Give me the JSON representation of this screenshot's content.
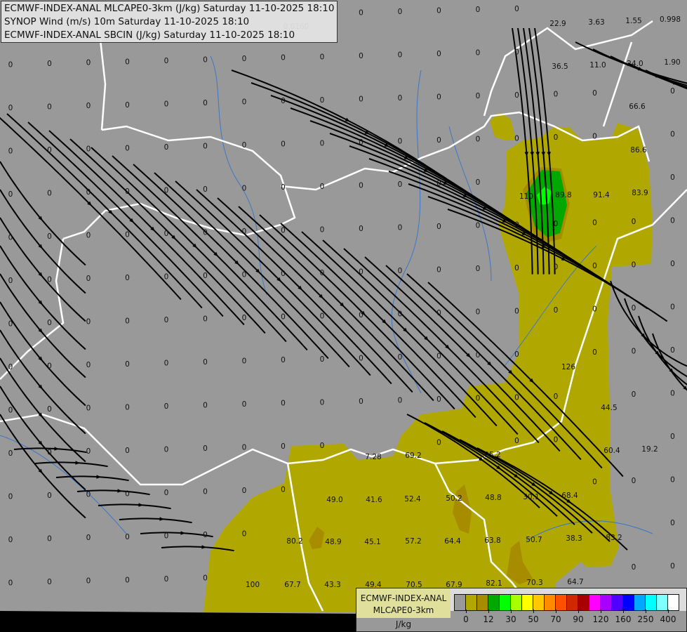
{
  "header": {
    "lines": [
      "ECMWF-INDEX-ANAL MLCAPE0-3km (J/kg) Saturday 11-10-2025 18:10",
      "SYNOP Wind (m/s) 10m Saturday 11-10-2025 18:10",
      "ECMWF-INDEX-ANAL SBCIN (J/kg) Saturday 11-10-2025 18:10"
    ]
  },
  "map": {
    "background_color": "#999999",
    "border_color": "#ffffff",
    "river_color": "#3a78c8",
    "streamline_color": "#000000",
    "zero_label": "0",
    "value_labels": [
      "0.0160",
      "22.9",
      "3.63",
      "1.55",
      "0.998",
      "36.5",
      "11.0",
      "24.0",
      "1.90",
      "66.6",
      "86.6",
      "110",
      "89.8",
      "91.4",
      "83.9",
      "126",
      "44.5",
      "60.4",
      "19.2",
      "7.28",
      "69.2",
      "95.2",
      "68.4",
      "30.1",
      "48.8",
      "50.2",
      "52.4",
      "41.6",
      "49.0",
      "80.2",
      "48.9",
      "45.1",
      "57.2",
      "64.4",
      "63.8",
      "50.7",
      "38.3",
      "83.2",
      "100",
      "67.7",
      "43.3",
      "49.4",
      "70.5",
      "67.9",
      "82.1",
      "70.3",
      "64.7"
    ]
  },
  "legend": {
    "title_line1": "ECMWF-INDEX-ANAL",
    "title_line2": "MLCAPE0-3km",
    "unit": "J/kg",
    "colors": [
      "#999999",
      "#b0a800",
      "#a88c00",
      "#00a800",
      "#00ff00",
      "#a8ff00",
      "#ffff00",
      "#ffc800",
      "#ff8c00",
      "#ff5000",
      "#d02800",
      "#a80000",
      "#ff00ff",
      "#a800ff",
      "#5000ff",
      "#0000ff",
      "#00a8ff",
      "#00ffff",
      "#80ffff",
      "#ffffff"
    ],
    "ticks": [
      "0",
      "12",
      "30",
      "50",
      "70",
      "90",
      "120",
      "160",
      "250",
      "400"
    ]
  }
}
